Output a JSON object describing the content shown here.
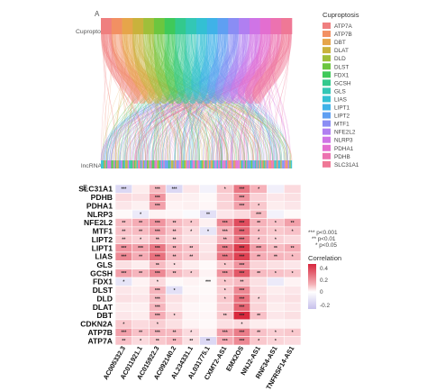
{
  "panel_a": {
    "label": "A",
    "top_axis_label": "Cuproptosis",
    "bottom_axis_label": "lncRNA",
    "legend_title": "Cuproptosis",
    "legend": [
      {
        "name": "ATP7A",
        "color": "#ef7f7f"
      },
      {
        "name": "ATP7B",
        "color": "#f29063"
      },
      {
        "name": "DBT",
        "color": "#e6a54a"
      },
      {
        "name": "DLAT",
        "color": "#c9b23c"
      },
      {
        "name": "DLD",
        "color": "#9fbf3a"
      },
      {
        "name": "DLST",
        "color": "#6cc63f"
      },
      {
        "name": "FDX1",
        "color": "#3fc95a"
      },
      {
        "name": "GCSH",
        "color": "#33c98d"
      },
      {
        "name": "GLS",
        "color": "#33c7b5"
      },
      {
        "name": "LIAS",
        "color": "#33c0d3"
      },
      {
        "name": "LIPT1",
        "color": "#3fb2e8"
      },
      {
        "name": "LIPT2",
        "color": "#5f9ff2"
      },
      {
        "name": "MTF1",
        "color": "#8a8df4"
      },
      {
        "name": "NFE2L2",
        "color": "#b07ff1"
      },
      {
        "name": "NLRP3",
        "color": "#cf74e6"
      },
      {
        "name": "PDHA1",
        "color": "#e36ed0"
      },
      {
        "name": "PDHB",
        "color": "#ec72b0"
      },
      {
        "name": "SLC31A1",
        "color": "#ef7896"
      }
    ]
  },
  "panel_b": {
    "label": "B",
    "significance_legend": [
      "*** p<0.001",
      "** p<0.01",
      "* p<0.05"
    ],
    "colorbar_title": "Correlation",
    "colorbar_ticks": [
      "0.4",
      "0.2",
      "0",
      "-0.2"
    ]
  },
  "chart_data": {
    "type": "heatmap",
    "rows": [
      "SLC31A1",
      "PDHB",
      "PDHA1",
      "NLRP3",
      "NFE2L2",
      "MTF1",
      "LIPT2",
      "LIPT1",
      "LIAS",
      "GLS",
      "GCSH",
      "FDX1",
      "DLST",
      "DLD",
      "DLAT",
      "DBT",
      "CDKN2A",
      "ATP7B",
      "ATP7A"
    ],
    "columns": [
      "AC005332.3",
      "AC011921.1",
      "AC015922.3",
      "AC092140.2",
      "AL234331.1",
      "AL031775.1",
      "CXMT2-AS1",
      "EMX2OS",
      "NNJ2-AS1",
      "RNF34-AS1",
      "TNFRSF14-AS1"
    ],
    "values": [
      [
        -0.15,
        0.06,
        0.22,
        -0.15,
        0.08,
        -0.05,
        0.18,
        0.35,
        0.25,
        -0.06,
        0.12
      ],
      [
        0.12,
        0.1,
        0.3,
        0.06,
        0.05,
        0.02,
        0.15,
        0.3,
        0.15,
        0.08,
        0.1
      ],
      [
        0.08,
        0.05,
        0.28,
        0.04,
        0.05,
        0.03,
        0.14,
        0.28,
        0.18,
        0.06,
        0.08
      ],
      [
        0.02,
        -0.08,
        0.04,
        0.03,
        -0.02,
        -0.12,
        0.08,
        0.12,
        0.22,
        -0.05,
        0.02
      ],
      [
        0.22,
        0.26,
        0.3,
        0.22,
        0.18,
        0.05,
        0.32,
        0.42,
        0.25,
        0.2,
        0.28
      ],
      [
        0.2,
        0.22,
        0.28,
        0.2,
        0.12,
        -0.1,
        0.25,
        0.38,
        0.22,
        0.18,
        0.2
      ],
      [
        0.18,
        0.15,
        0.22,
        0.16,
        0.1,
        0.08,
        0.24,
        0.35,
        0.2,
        0.15,
        0.12
      ],
      [
        0.3,
        0.28,
        0.35,
        0.25,
        0.2,
        0.08,
        0.34,
        0.45,
        0.28,
        0.22,
        0.26
      ],
      [
        0.32,
        0.26,
        0.36,
        0.24,
        0.2,
        0.1,
        0.35,
        0.44,
        0.26,
        0.24,
        0.22
      ],
      [
        0.1,
        0.06,
        0.22,
        0.12,
        0.06,
        0.02,
        0.18,
        0.3,
        0.14,
        0.1,
        0.08
      ],
      [
        0.28,
        0.24,
        0.32,
        0.22,
        0.16,
        0.04,
        0.3,
        0.4,
        0.22,
        0.2,
        0.18
      ],
      [
        -0.1,
        0.04,
        0.12,
        0.02,
        0.04,
        0.02,
        0.18,
        0.22,
        0.1,
        -0.08,
        0.04
      ],
      [
        0.08,
        0.06,
        0.24,
        -0.12,
        0.03,
        0.02,
        0.16,
        0.32,
        0.12,
        0.06,
        0.08
      ],
      [
        0.1,
        0.08,
        0.22,
        0.1,
        0.05,
        0.03,
        0.18,
        0.36,
        0.14,
        0.08,
        0.1
      ],
      [
        0.06,
        0.05,
        0.24,
        0.08,
        0.03,
        0.02,
        0.16,
        0.38,
        0.14,
        0.06,
        0.08
      ],
      [
        0.08,
        0.06,
        0.26,
        0.14,
        0.04,
        0.03,
        0.18,
        0.48,
        0.2,
        0.08,
        0.1
      ],
      [
        0.18,
        0.12,
        0.16,
        0.1,
        0.04,
        0.02,
        0.1,
        0.12,
        0.06,
        0.04,
        0.05
      ],
      [
        0.28,
        0.2,
        0.24,
        0.22,
        0.12,
        0.05,
        0.28,
        0.34,
        0.2,
        0.16,
        0.18
      ],
      [
        0.2,
        0.12,
        0.18,
        0.22,
        0.1,
        -0.15,
        0.26,
        0.32,
        0.18,
        0.14,
        0.12
      ]
    ],
    "significance": [
      [
        "***",
        "",
        "***",
        "***",
        "",
        "",
        "*",
        "***",
        "*",
        "",
        ""
      ],
      [
        "",
        "",
        "***",
        "",
        "",
        "",
        "",
        "***",
        "",
        "",
        ""
      ],
      [
        "",
        "",
        "***",
        "",
        "",
        "",
        "",
        "***",
        "*",
        "",
        ""
      ],
      [
        "",
        "*",
        "",
        "",
        "",
        "**",
        "",
        "",
        "***",
        "",
        ""
      ],
      [
        "**",
        "**",
        "***",
        "**",
        "*",
        "",
        "***",
        "***",
        "**",
        "*",
        "**"
      ],
      [
        "**",
        "**",
        "***",
        "**",
        "*",
        "*",
        "***",
        "***",
        "*",
        "*",
        "*"
      ],
      [
        "**",
        "*",
        "**",
        "**",
        "",
        "",
        "**",
        "***",
        "*",
        "*",
        ""
      ],
      [
        "***",
        "***",
        "***",
        "**",
        "**",
        "",
        "***",
        "***",
        "***",
        "**",
        "**"
      ],
      [
        "***",
        "**",
        "***",
        "**",
        "**",
        "",
        "***",
        "***",
        "**",
        "**",
        "*"
      ],
      [
        "",
        "",
        "**",
        "*",
        "",
        "",
        "*",
        "***",
        "",
        "",
        ""
      ],
      [
        "***",
        "**",
        "***",
        "**",
        "*",
        "",
        "***",
        "***",
        "**",
        "*",
        "*"
      ],
      [
        "*",
        "",
        "*",
        "",
        "",
        "***",
        "*",
        "**",
        "",
        "",
        ""
      ],
      [
        "",
        "",
        "***",
        "*",
        "",
        "",
        "*",
        "***",
        "",
        "",
        ""
      ],
      [
        "",
        "",
        "***",
        "",
        "",
        "",
        "*",
        "***",
        "*",
        "",
        ""
      ],
      [
        "",
        "",
        "***",
        "",
        "",
        "",
        "",
        "***",
        "",
        "",
        ""
      ],
      [
        "",
        "",
        "***",
        "*",
        "",
        "",
        "**",
        "***",
        "**",
        "",
        ""
      ],
      [
        "*",
        "",
        "*",
        "",
        "",
        "",
        "",
        "*",
        "",
        "",
        ""
      ],
      [
        "***",
        "**",
        "***",
        "**",
        "*",
        "",
        "***",
        "***",
        "**",
        "*",
        "*"
      ],
      [
        "**",
        "*",
        "**",
        "**",
        "**",
        "**",
        "***",
        "***",
        "*",
        "*",
        ""
      ]
    ],
    "value_range": [
      -0.25,
      0.5
    ]
  }
}
